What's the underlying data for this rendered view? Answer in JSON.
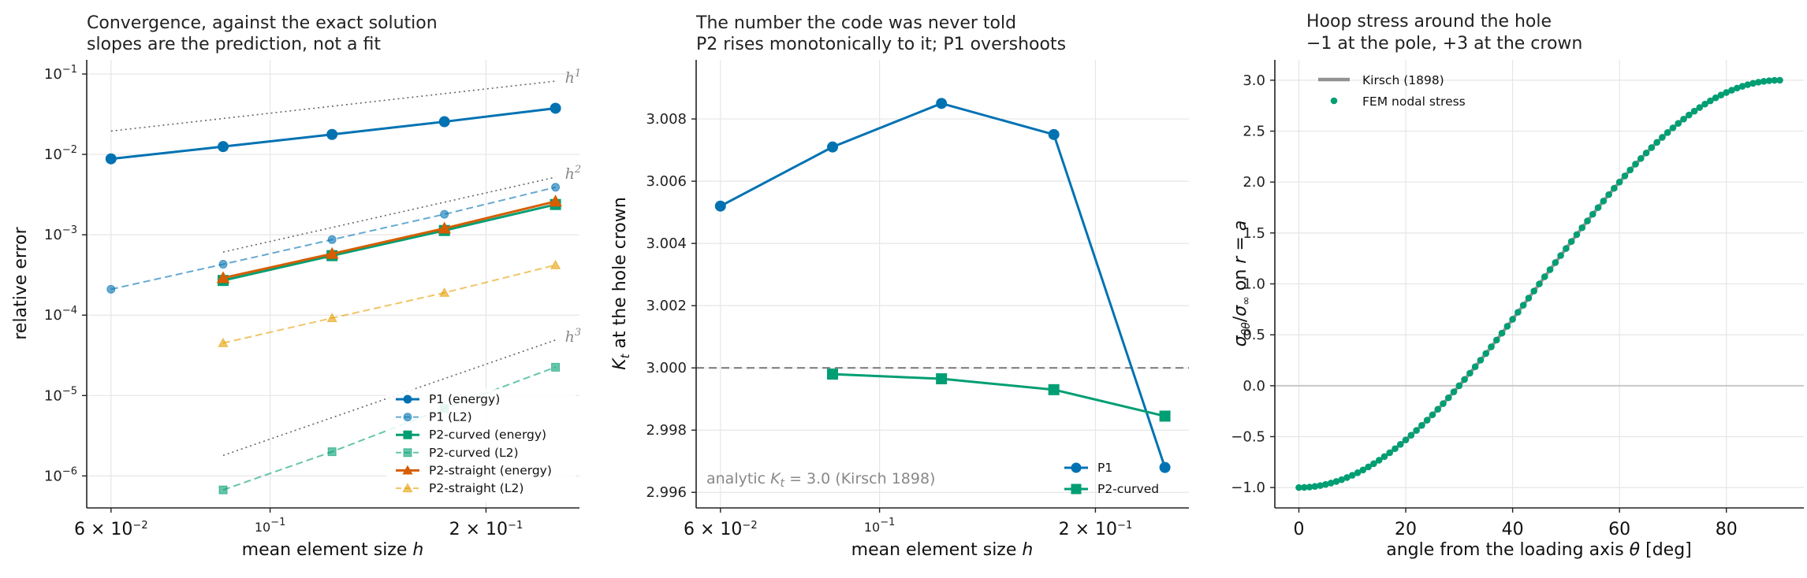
{
  "colors": {
    "blue": "#0072B2",
    "green": "#009E73",
    "orange": "#D55E00",
    "orange_light": "#E69F00",
    "reference_gray": "#808080"
  },
  "chart_data": [
    {
      "type": "line",
      "title": "Convergence, against the exact solution",
      "subtitle": "slopes are the prediction, not a fit",
      "xlabel": "mean element size h",
      "ylabel": "relative error",
      "xscale": "log",
      "yscale": "log",
      "xlim": [
        0.0555,
        0.27
      ],
      "ylim": [
        4e-07,
        0.15
      ],
      "xticks": [
        {
          "value": 0.06,
          "label": "6 × 10^-2"
        },
        {
          "value": 0.1,
          "label": "10^-1"
        },
        {
          "value": 0.2,
          "label": "2 × 10^-1"
        }
      ],
      "yticks": [
        {
          "value": 1e-06,
          "label": "10^-6"
        },
        {
          "value": 1e-05,
          "label": "10^-5"
        },
        {
          "value": 0.0001,
          "label": "10^-4"
        },
        {
          "value": 0.001,
          "label": "10^-3"
        },
        {
          "value": 0.01,
          "label": "10^-2"
        },
        {
          "value": 0.1,
          "label": "10^-1"
        }
      ],
      "grid": true,
      "legend_position": "lower-right",
      "series": [
        {
          "name": "P1  (energy)",
          "color": "#0072B2",
          "marker": "circle",
          "linestyle": "solid",
          "emphasis": true,
          "x": [
            0.06,
            0.086,
            0.122,
            0.175,
            0.25
          ],
          "y": [
            0.0088,
            0.0125,
            0.0177,
            0.0255,
            0.0375
          ]
        },
        {
          "name": "P1  (L2)",
          "color": "#0072B2",
          "marker": "circle",
          "linestyle": "dashed",
          "emphasis": false,
          "x": [
            0.06,
            0.086,
            0.122,
            0.175,
            0.25
          ],
          "y": [
            0.00021,
            0.00043,
            0.00087,
            0.0018,
            0.0039
          ]
        },
        {
          "name": "P2-curved  (energy)",
          "color": "#009E73",
          "marker": "square",
          "linestyle": "solid",
          "emphasis": true,
          "x": [
            0.086,
            0.122,
            0.175,
            0.25
          ],
          "y": [
            0.00027,
            0.00055,
            0.00113,
            0.00238
          ]
        },
        {
          "name": "P2-curved  (L2)",
          "color": "#009E73",
          "marker": "square",
          "linestyle": "dashed",
          "emphasis": false,
          "x": [
            0.086,
            0.122,
            0.175,
            0.25
          ],
          "y": [
            6.7e-07,
            2e-06,
            6.9e-06,
            2.25e-05
          ]
        },
        {
          "name": "P2-straight  (energy)",
          "color": "#D55E00",
          "marker": "triangle",
          "linestyle": "solid",
          "emphasis": true,
          "x": [
            0.086,
            0.122,
            0.175,
            0.25
          ],
          "y": [
            0.00029,
            0.00058,
            0.0012,
            0.0026
          ]
        },
        {
          "name": "P2-straight  (L2)",
          "color": "#E69F00",
          "marker": "triangle",
          "linestyle": "dashed",
          "emphasis": false,
          "x": [
            0.086,
            0.122,
            0.175,
            0.25
          ],
          "y": [
            4.5e-05,
            9.2e-05,
            0.00019,
            0.00042
          ]
        }
      ],
      "reference_lines": [
        {
          "label": "h^1",
          "x": [
            0.06,
            0.25
          ],
          "y": [
            0.0195,
            0.0815
          ]
        },
        {
          "label": "h^2",
          "x": [
            0.086,
            0.25
          ],
          "y": [
            0.00061,
            0.0052
          ]
        },
        {
          "label": "h^3",
          "x": [
            0.086,
            0.25
          ],
          "y": [
            1.8e-06,
            4.9e-05
          ]
        }
      ]
    },
    {
      "type": "line",
      "title": "The number the code was never told",
      "subtitle": "P2 rises monotonically to it; P1 overshoots",
      "xlabel": "mean element size h",
      "ylabel": "K_t at the hole crown",
      "xscale": "log",
      "yscale": "linear",
      "xlim": [
        0.0555,
        0.27
      ],
      "ylim": [
        2.9955,
        3.0099
      ],
      "xticks": [
        {
          "value": 0.06,
          "label": "6 × 10^-2"
        },
        {
          "value": 0.1,
          "label": "10^-1"
        },
        {
          "value": 0.2,
          "label": "2 × 10^-1"
        }
      ],
      "yticks": [
        {
          "value": 2.996,
          "label": "2.996"
        },
        {
          "value": 2.998,
          "label": "2.998"
        },
        {
          "value": 3.0,
          "label": "3.000"
        },
        {
          "value": 3.002,
          "label": "3.002"
        },
        {
          "value": 3.004,
          "label": "3.004"
        },
        {
          "value": 3.006,
          "label": "3.006"
        },
        {
          "value": 3.008,
          "label": "3.008"
        }
      ],
      "grid": true,
      "legend_position": "lower-right",
      "series": [
        {
          "name": "P1",
          "color": "#0072B2",
          "marker": "circle",
          "x": [
            0.06,
            0.086,
            0.122,
            0.175,
            0.25
          ],
          "y": [
            3.0052,
            3.0071,
            3.0085,
            3.0075,
            2.9968
          ]
        },
        {
          "name": "P2-curved",
          "color": "#009E73",
          "marker": "square",
          "x": [
            0.086,
            0.122,
            0.175,
            0.25
          ],
          "y": [
            2.9998,
            2.99965,
            2.9993,
            2.99845
          ]
        }
      ],
      "reference_hline": {
        "y": 3.0
      },
      "annotation": "analytic K_t = 3.0 (Kirsch 1898)"
    },
    {
      "type": "line",
      "title": "Hoop stress around the hole",
      "subtitle": "−1 at the pole, +3 at the crown",
      "xlabel": "angle from the loading axis θ  [deg]",
      "ylabel": "σ_θθ/σ_∞ on r = a",
      "xscale": "linear",
      "yscale": "linear",
      "xlim": [
        -4.5,
        94.5
      ],
      "ylim": [
        -1.2,
        3.2
      ],
      "xticks": [
        {
          "value": 0,
          "label": "0"
        },
        {
          "value": 20,
          "label": "20"
        },
        {
          "value": 40,
          "label": "40"
        },
        {
          "value": 60,
          "label": "60"
        },
        {
          "value": 80,
          "label": "80"
        }
      ],
      "yticks": [
        {
          "value": -1.0,
          "label": "−1.0"
        },
        {
          "value": -0.5,
          "label": "−0.5"
        },
        {
          "value": 0.0,
          "label": "0.0"
        },
        {
          "value": 0.5,
          "label": "0.5"
        },
        {
          "value": 1.0,
          "label": "1.0"
        },
        {
          "value": 1.5,
          "label": "1.5"
        },
        {
          "value": 2.0,
          "label": "2.0"
        },
        {
          "value": 2.5,
          "label": "2.5"
        },
        {
          "value": 3.0,
          "label": "3.0"
        }
      ],
      "grid": true,
      "legend_position": "top-left",
      "series": [
        {
          "name": "Kirsch (1898)",
          "color": "#808080",
          "style": "line",
          "formula": "1 - 2*cos(2*theta)",
          "theta_range": [
            0,
            90
          ]
        },
        {
          "name": "FEM nodal stress",
          "color": "#009E73",
          "style": "scatter",
          "theta_start": 0,
          "theta_step": 1,
          "theta_end": 90,
          "formula": "1 - 2*cos(2*theta)"
        }
      ],
      "zero_line": {
        "y": 0.0
      }
    }
  ]
}
